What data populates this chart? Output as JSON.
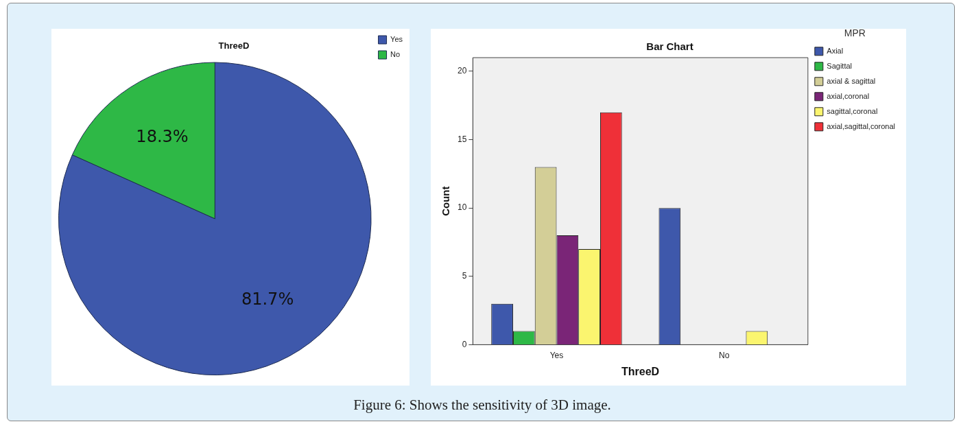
{
  "chart_data": [
    {
      "type": "pie",
      "title": "ThreeD",
      "categories": [
        "Yes",
        "No"
      ],
      "values": [
        81.7,
        18.3
      ],
      "colors": [
        "#3e58ab",
        "#2eb846"
      ],
      "value_labels": [
        "81.7%",
        "18.3%"
      ],
      "legend": "top right",
      "annotations": [
        "Figure 6: Shows the sensitivity of 3D image."
      ]
    },
    {
      "type": "bar",
      "title": "Bar Chart",
      "xlabel": "ThreeD",
      "ylabel": "Count",
      "legend_title": "MPR",
      "legend": "top right",
      "grid": false,
      "categories": [
        "Yes",
        "No"
      ],
      "ylim": [
        0,
        21
      ],
      "yticks": [
        0,
        5,
        10,
        15,
        20
      ],
      "series": [
        {
          "name": "Axial",
          "color": "#3e58ab",
          "values": [
            3,
            10
          ]
        },
        {
          "name": "Sagittal",
          "color": "#2eb846",
          "values": [
            1,
            0
          ]
        },
        {
          "name": "axial & sagittal",
          "color": "#d3ce97",
          "values": [
            13,
            0
          ]
        },
        {
          "name": "axial,coronal",
          "color": "#7a2577",
          "values": [
            8,
            0
          ]
        },
        {
          "name": "sagittal,coronal",
          "color": "#fbf56f",
          "values": [
            7,
            1
          ]
        },
        {
          "name": "axial,sagittal,coronal",
          "color": "#ef3038",
          "values": [
            17,
            0
          ]
        }
      ]
    }
  ]
}
